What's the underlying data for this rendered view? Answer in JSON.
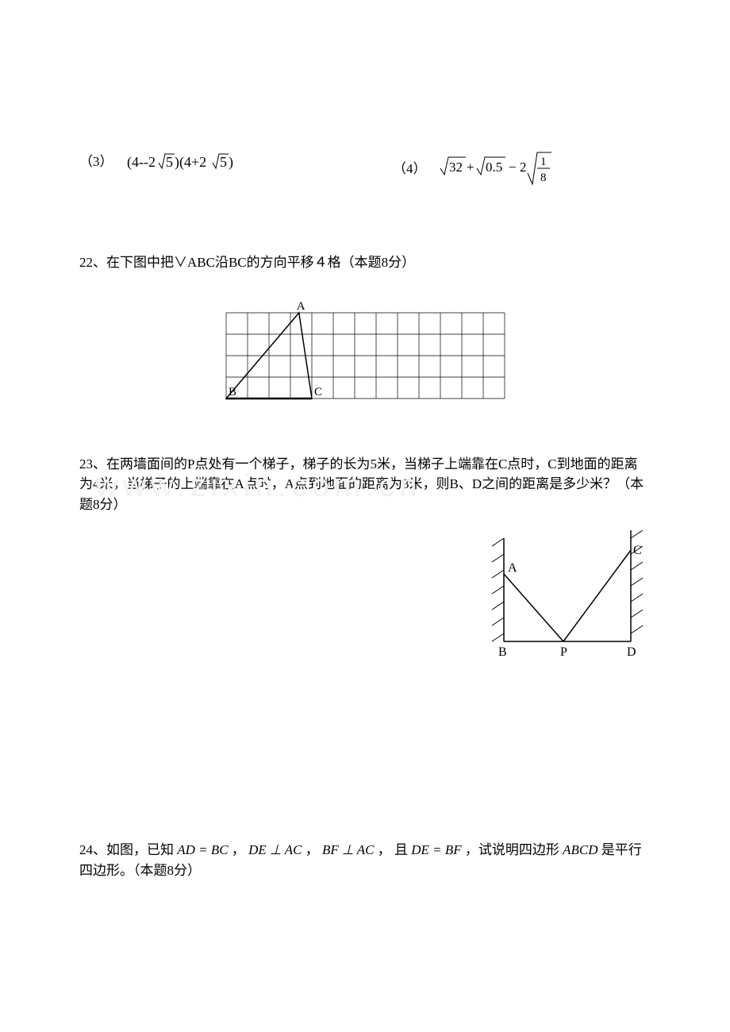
{
  "eq3": {
    "label": "（3）",
    "expr": "(4--2√5)(4+2√5)"
  },
  "eq4": {
    "label": "（4）",
    "expr_sqrt32": "32",
    "expr_sqrt05": "0.5",
    "expr_frac_num": "1",
    "expr_frac_den": "8"
  },
  "q22": {
    "text": "22、在下图中把∨ABC沿BC的方向平移４格（本题8分）",
    "grid": {
      "cols": 13,
      "rows": 4,
      "cell": 27,
      "labelA": "A",
      "labelB": "B",
      "labelC": "C"
    }
  },
  "q23": {
    "text": "23、在两墙面间的P点处有一个梯子，梯子的长为5米，当梯子上端靠在C点时，C到地面的距离为4米，当梯子的上端靠在A点时，A点到地面的距离为3米，则B、D之间的距离是多少米？（本题8分）",
    "labels": {
      "A": "A",
      "B": "B",
      "C": "C",
      "D": "D",
      "P": "P"
    }
  },
  "q24": {
    "prefix": "24、如图，已知 ",
    "eq1": "AD = BC",
    "sep1": "， ",
    "eq2": "DE ⊥ AC",
    "sep2": "， ",
    "eq3": "BF ⊥ AC",
    "sep3": "，  且 ",
    "eq4": "DE = BF",
    "sep4": " ，试说明四边形 ",
    "abcd": "ABCD",
    "suffix": " 是平行四边形。（本题8分）"
  },
  "watermark": "www.zixin.com.cn"
}
